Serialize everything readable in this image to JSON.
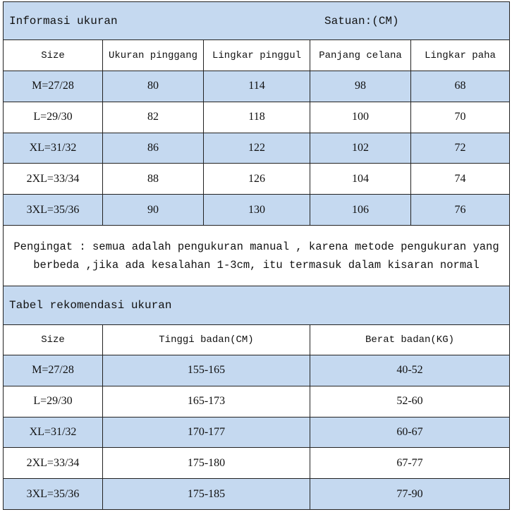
{
  "size_info": {
    "title": "Informasi ukuran",
    "unit": "Satuan:(CM)",
    "table": {
      "header": [
        "Size",
        "Ukuran pinggang",
        "Lingkar pinggul",
        "Panjang celana",
        "Lingkar paha"
      ],
      "rows": [
        [
          "M=27/28",
          "80",
          "114",
          "98",
          "68"
        ],
        [
          "L=29/30",
          "82",
          "118",
          "100",
          "70"
        ],
        [
          "XL=31/32",
          "86",
          "122",
          "102",
          "72"
        ],
        [
          "2XL=33/34",
          "88",
          "126",
          "104",
          "74"
        ],
        [
          "3XL=35/36",
          "90",
          "130",
          "106",
          "76"
        ]
      ]
    }
  },
  "note": {
    "lines": [
      "Pengingat : semua adalah pengukuran manual , karena metode pengukuran yang",
      "berbeda ,jika ada kesalahan 1-3cm, itu termasuk dalam kisaran normal"
    ]
  },
  "recommendation": {
    "title": "Tabel rekomendasi ukuran",
    "table": {
      "header": [
        "Size",
        "Tinggi badan(CM)",
        "Berat badan(KG)"
      ],
      "rows": [
        [
          "M=27/28",
          "155-165",
          "40-52"
        ],
        [
          "L=29/30",
          "165-173",
          "52-60"
        ],
        [
          "XL=31/32",
          "170-177",
          "60-67"
        ],
        [
          "2XL=33/34",
          "175-180",
          "67-77"
        ],
        [
          "3XL=35/36",
          "175-185",
          "77-90"
        ]
      ]
    }
  }
}
